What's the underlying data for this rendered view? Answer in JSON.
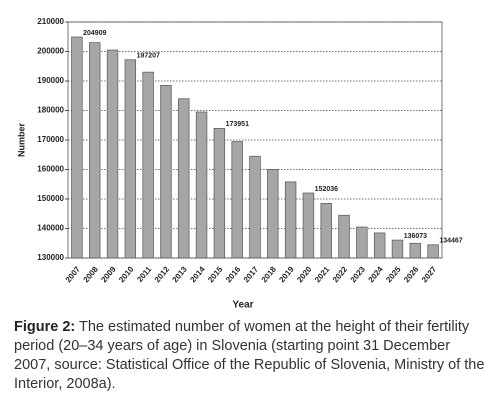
{
  "chart_data": {
    "type": "bar",
    "categories": [
      "2007",
      "2008",
      "2009",
      "2010",
      "2011",
      "2012",
      "2013",
      "2014",
      "2015",
      "2016",
      "2017",
      "2018",
      "2019",
      "2020",
      "2021",
      "2022",
      "2023",
      "2024",
      "2025",
      "2026",
      "2027"
    ],
    "values": [
      204909,
      203000,
      200500,
      197207,
      193000,
      188500,
      184000,
      179500,
      173951,
      169500,
      164500,
      160000,
      155800,
      152036,
      148500,
      144500,
      140500,
      138500,
      136073,
      135000,
      134467
    ],
    "value_labels": [
      "204909",
      null,
      null,
      "197207",
      null,
      null,
      null,
      null,
      "173951",
      null,
      null,
      null,
      null,
      "152036",
      null,
      null,
      null,
      null,
      "136073",
      null,
      "134467"
    ],
    "color": "#a6a6a6",
    "ylim": [
      130000,
      210000
    ],
    "yticks": [
      130000,
      140000,
      150000,
      160000,
      170000,
      180000,
      190000,
      200000,
      210000
    ],
    "grid": true,
    "y_label": "Number",
    "x_label": "Year"
  },
  "caption": {
    "label": "Figure 2:",
    "text": "The estimated number of women at the height of their fertility period (20–34 years of age) in Slovenia (starting point 31 December 2007, source: Statistical Office of the Republic of Slovenia, Ministry of the Interior, 2008a)."
  }
}
